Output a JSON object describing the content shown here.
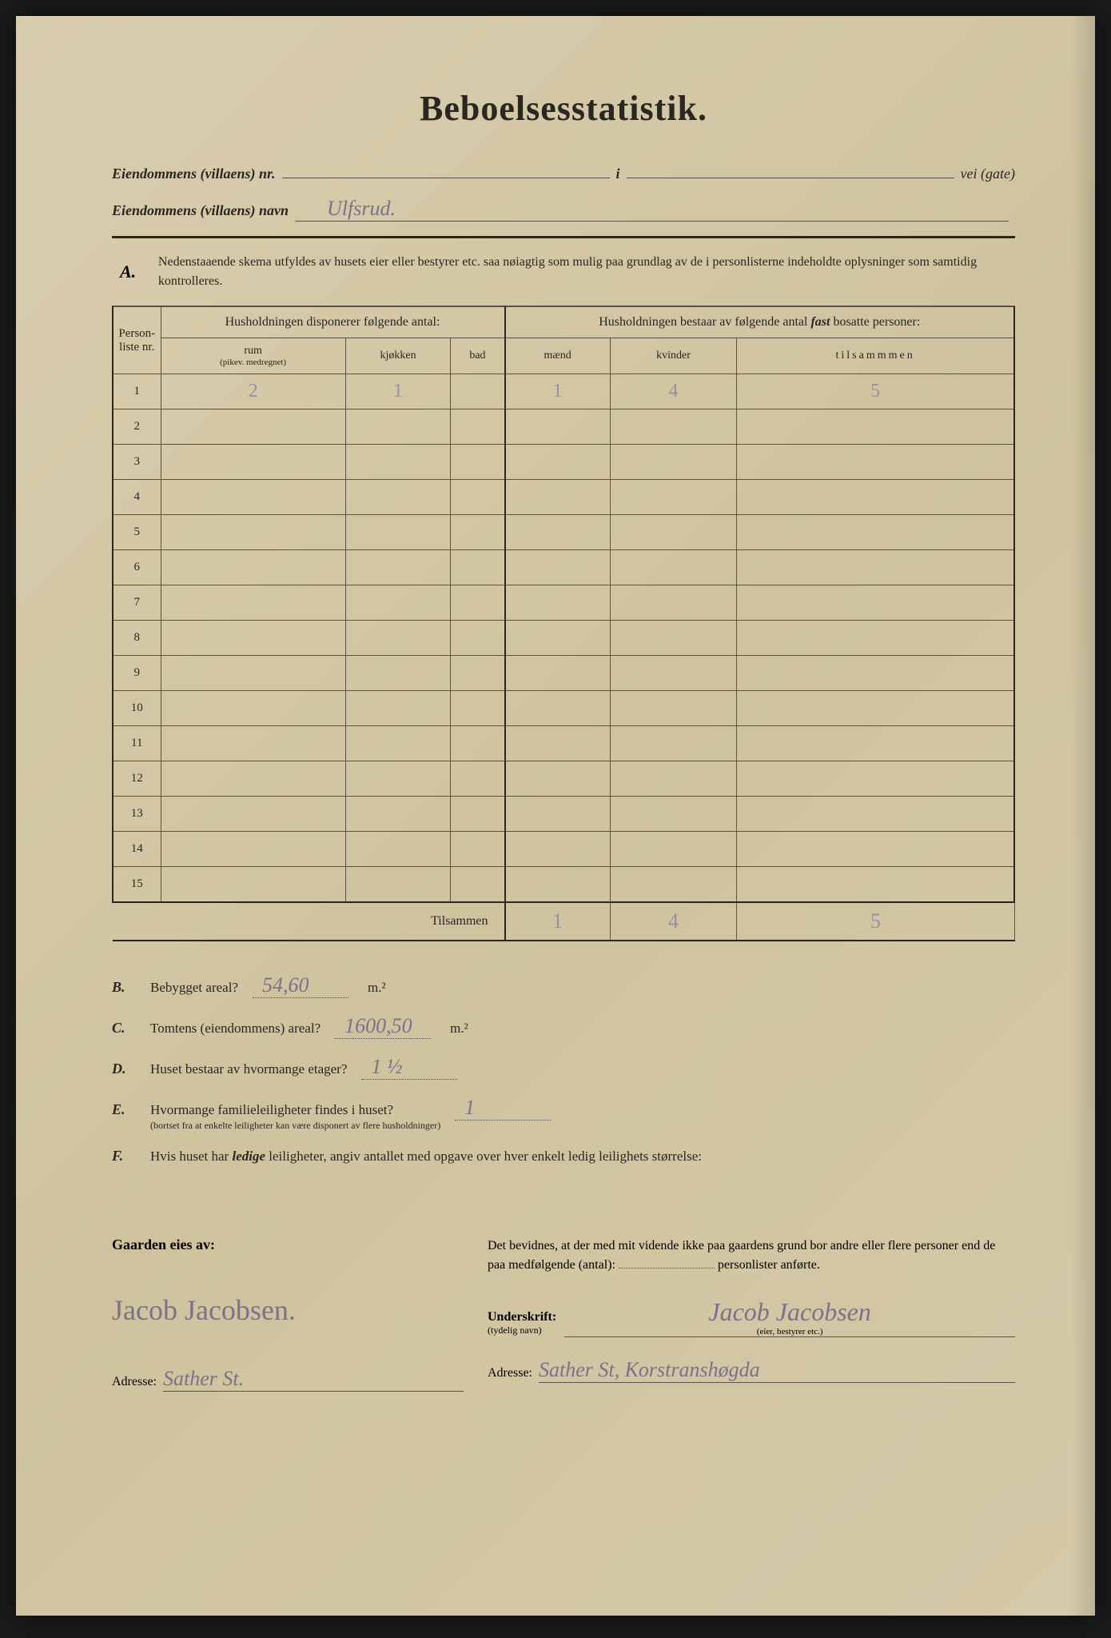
{
  "title": "Beboelsesstatistik.",
  "header": {
    "line1_label": "Eiendommens (villaens) nr.",
    "line1_mid": "i",
    "line1_trail": "vei (gate)",
    "line2_label": "Eiendommens (villaens) navn",
    "line2_value": "Ulfsrud."
  },
  "section_a": {
    "letter": "A.",
    "text": "Nedenstaaende skema utfyldes av husets eier eller bestyrer etc. saa nøiagtig som mulig paa grundlag av de i personlisterne indeholdte oplysninger som samtidig kontrolleres."
  },
  "table": {
    "col_nr_label": "Person-liste nr.",
    "group1": "Husholdningen disponerer følgende antal:",
    "group2_a": "Husholdningen bestaar av følgende antal ",
    "group2_b": "fast",
    "group2_c": " bosatte personer:",
    "sub_rum": "rum",
    "sub_rum_note": "(pikev. medregnet)",
    "sub_kjokken": "kjøkken",
    "sub_bad": "bad",
    "sub_maend": "mænd",
    "sub_kvinder": "kvinder",
    "sub_tilsammen": "tilsammmen",
    "rows": [
      {
        "nr": "1",
        "rum": "2",
        "kjokken": "1",
        "bad": "",
        "maend": "1",
        "kvinder": "4",
        "tilsammen": "5"
      },
      {
        "nr": "2",
        "rum": "",
        "kjokken": "",
        "bad": "",
        "maend": "",
        "kvinder": "",
        "tilsammen": ""
      },
      {
        "nr": "3",
        "rum": "",
        "kjokken": "",
        "bad": "",
        "maend": "",
        "kvinder": "",
        "tilsammen": ""
      },
      {
        "nr": "4",
        "rum": "",
        "kjokken": "",
        "bad": "",
        "maend": "",
        "kvinder": "",
        "tilsammen": ""
      },
      {
        "nr": "5",
        "rum": "",
        "kjokken": "",
        "bad": "",
        "maend": "",
        "kvinder": "",
        "tilsammen": ""
      },
      {
        "nr": "6",
        "rum": "",
        "kjokken": "",
        "bad": "",
        "maend": "",
        "kvinder": "",
        "tilsammen": ""
      },
      {
        "nr": "7",
        "rum": "",
        "kjokken": "",
        "bad": "",
        "maend": "",
        "kvinder": "",
        "tilsammen": ""
      },
      {
        "nr": "8",
        "rum": "",
        "kjokken": "",
        "bad": "",
        "maend": "",
        "kvinder": "",
        "tilsammen": ""
      },
      {
        "nr": "9",
        "rum": "",
        "kjokken": "",
        "bad": "",
        "maend": "",
        "kvinder": "",
        "tilsammen": ""
      },
      {
        "nr": "10",
        "rum": "",
        "kjokken": "",
        "bad": "",
        "maend": "",
        "kvinder": "",
        "tilsammen": ""
      },
      {
        "nr": "11",
        "rum": "",
        "kjokken": "",
        "bad": "",
        "maend": "",
        "kvinder": "",
        "tilsammen": ""
      },
      {
        "nr": "12",
        "rum": "",
        "kjokken": "",
        "bad": "",
        "maend": "",
        "kvinder": "",
        "tilsammen": ""
      },
      {
        "nr": "13",
        "rum": "",
        "kjokken": "",
        "bad": "",
        "maend": "",
        "kvinder": "",
        "tilsammen": ""
      },
      {
        "nr": "14",
        "rum": "",
        "kjokken": "",
        "bad": "",
        "maend": "",
        "kvinder": "",
        "tilsammen": ""
      },
      {
        "nr": "15",
        "rum": "",
        "kjokken": "",
        "bad": "",
        "maend": "",
        "kvinder": "",
        "tilsammen": ""
      }
    ],
    "footer_label": "Tilsammen",
    "footer": {
      "maend": "1",
      "kvinder": "4",
      "tilsammen": "5"
    }
  },
  "questions": {
    "b": {
      "letter": "B.",
      "text": "Bebygget areal?",
      "value": "54,60",
      "unit": "m.²"
    },
    "c": {
      "letter": "C.",
      "text": "Tomtens (eiendommens) areal?",
      "value": "1600,50",
      "unit": "m.²"
    },
    "d": {
      "letter": "D.",
      "text": "Huset bestaar av hvormange etager?",
      "value": "1 ½"
    },
    "e": {
      "letter": "E.",
      "text": "Hvormange familieleiligheter findes i huset?",
      "note": "(bortset fra at enkelte leiligheter kan være disponert av flere husholdninger)",
      "value": "1"
    },
    "f": {
      "letter": "F.",
      "text_a": "Hvis huset har ",
      "text_em": "ledige",
      "text_b": " leiligheter, angiv antallet med opgave over hver enkelt ledig leilighets størrelse:"
    }
  },
  "footer": {
    "owner_label": "Gaarden eies av:",
    "owner_name": "Jacob Jacobsen.",
    "addr_label": "Adresse:",
    "addr_left": "Sather St.",
    "cert_a": "Det bevidnes, at der med mit vidende ikke paa gaardens grund bor andre eller flere personer end de paa medfølgende (antal): ",
    "cert_b": " personlister anførte.",
    "sig_label": "Underskrift:",
    "sig_note": "(tydelig navn)",
    "sig_value": "Jacob Jacobsen",
    "sig_sub": "(eier, bestyrer etc.)",
    "addr_right": "Sather St, Korstranshøgda"
  },
  "colors": {
    "paper": "#d4c9a8",
    "ink": "#2a2620",
    "rule": "#5a5244",
    "handwriting": "#7a7288"
  }
}
